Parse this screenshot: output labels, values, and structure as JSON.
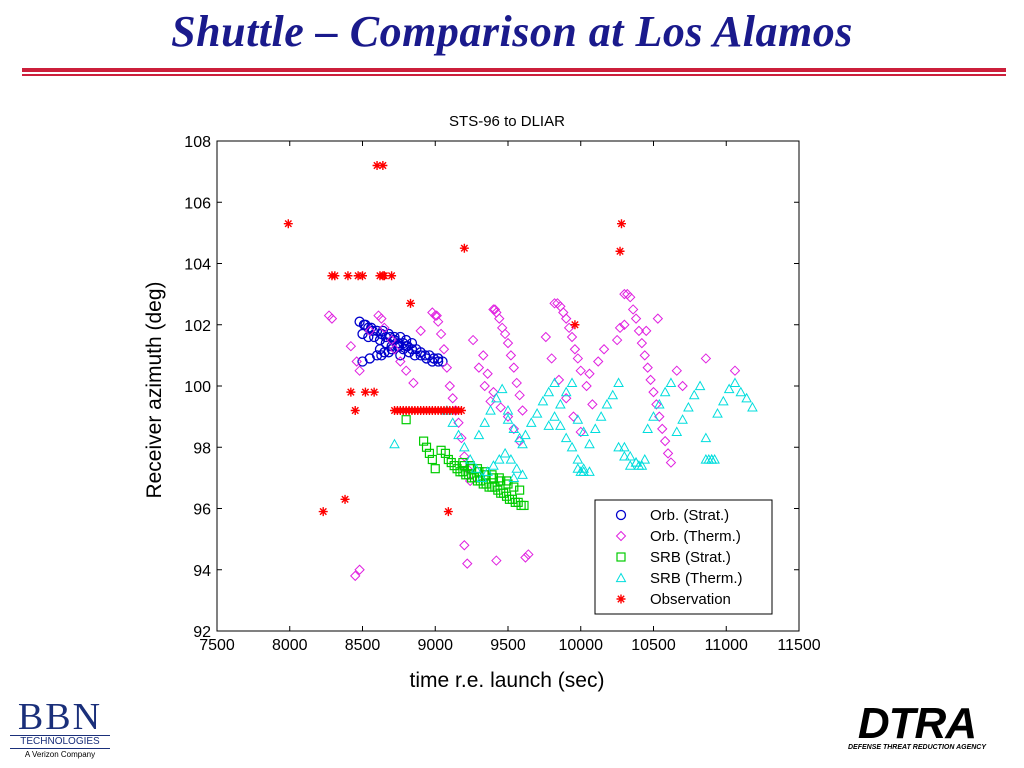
{
  "slide": {
    "title": "Shuttle – Comparison at Los Alamos"
  },
  "logos": {
    "bbn_letters": "BBN",
    "bbn_tech": "TECHNOLOGIES",
    "bbn_tagline": "A Verizon Company",
    "dtra_letters": "DTRA",
    "dtra_tagline": "DEFENSE THREAT REDUCTION AGENCY"
  },
  "chart_data": {
    "type": "scatter",
    "title": "STS-96 to DLIAR",
    "xlabel": "time r.e. launch (sec)",
    "ylabel": "Receiver azimuth (deg)",
    "xlim": [
      7500,
      11500
    ],
    "ylim": [
      92,
      108
    ],
    "xticks": [
      7500,
      8000,
      8500,
      9000,
      9500,
      10000,
      10500,
      11000,
      11500
    ],
    "yticks": [
      92,
      94,
      96,
      98,
      100,
      102,
      104,
      106,
      108
    ],
    "grid": false,
    "legend_position": "bottom-right",
    "series": [
      {
        "name": "Orb. (Strat.)",
        "color": "#0000cc",
        "marker": "circle",
        "x": [
          8480,
          8510,
          8540,
          8570,
          8600,
          8630,
          8660,
          8690,
          8720,
          8750,
          8780,
          8810,
          8840,
          8870,
          8900,
          8930,
          8960,
          8990,
          9020,
          9050,
          8500,
          8540,
          8580,
          8620,
          8660,
          8700,
          8740,
          8780,
          8820,
          8860,
          8900,
          8940,
          8980,
          9020,
          8520,
          8560,
          8600,
          8640,
          8680,
          8720,
          8760,
          8800,
          8840,
          8500,
          8550,
          8600,
          8650,
          8700,
          8750,
          8800,
          8630,
          8680,
          8760,
          8620
        ],
        "y": [
          102.1,
          102.0,
          101.9,
          101.8,
          101.8,
          101.7,
          101.6,
          101.6,
          101.5,
          101.4,
          101.4,
          101.3,
          101.2,
          101.2,
          101.1,
          101.0,
          101.0,
          100.9,
          100.9,
          100.8,
          101.7,
          101.6,
          101.6,
          101.5,
          101.4,
          101.3,
          101.3,
          101.2,
          101.1,
          101.0,
          101.0,
          100.9,
          100.8,
          100.8,
          102.0,
          101.9,
          101.8,
          101.8,
          101.7,
          101.6,
          101.6,
          101.5,
          101.4,
          100.8,
          100.9,
          101.0,
          101.1,
          101.2,
          101.3,
          101.3,
          101.0,
          101.1,
          101.0,
          101.2
        ]
      },
      {
        "name": "Orb. (Therm.)",
        "color": "#e020e0",
        "marker": "diamond",
        "x": [
          8270,
          8290,
          8420,
          8460,
          8480,
          8550,
          8610,
          8630,
          8650,
          8700,
          8720,
          8760,
          8800,
          8850,
          8900,
          8980,
          9000,
          9010,
          9020,
          9040,
          9060,
          9080,
          9100,
          9120,
          9140,
          9160,
          9180,
          9200,
          9220,
          9240,
          9260,
          9300,
          9340,
          9380,
          9400,
          9410,
          9420,
          9440,
          9460,
          9480,
          9500,
          9520,
          9540,
          9560,
          9580,
          9600,
          9330,
          9360,
          9400,
          9450,
          9500,
          9540,
          9580,
          9820,
          9840,
          9860,
          9880,
          9900,
          9920,
          9940,
          9960,
          9980,
          10000,
          10040,
          10080,
          9760,
          9800,
          9850,
          9900,
          9950,
          10000,
          10060,
          10120,
          10160,
          10300,
          10320,
          10340,
          10360,
          10380,
          10400,
          10420,
          10440,
          10460,
          10480,
          10500,
          10520,
          10540,
          10560,
          10580,
          10600,
          10620,
          10660,
          10700,
          10860,
          11060,
          10250,
          10270,
          10300,
          10450,
          10530,
          9200,
          9220,
          9420,
          9620,
          9640,
          8450,
          8480
        ],
        "y": [
          102.3,
          102.2,
          101.3,
          100.8,
          100.5,
          101.8,
          102.3,
          102.2,
          101.9,
          101.5,
          101.2,
          100.8,
          100.5,
          100.1,
          101.8,
          102.4,
          102.3,
          102.3,
          102.1,
          101.7,
          101.2,
          100.6,
          100.0,
          99.6,
          99.2,
          98.8,
          98.3,
          97.7,
          97.3,
          96.9,
          101.5,
          100.6,
          100.0,
          99.5,
          102.5,
          102.5,
          102.4,
          102.2,
          101.9,
          101.7,
          101.4,
          101.0,
          100.6,
          100.1,
          99.7,
          99.2,
          101.0,
          100.4,
          99.8,
          99.3,
          99.0,
          98.6,
          98.2,
          102.7,
          102.7,
          102.6,
          102.4,
          102.2,
          101.9,
          101.6,
          101.2,
          100.9,
          100.5,
          100.0,
          99.4,
          101.6,
          100.9,
          100.2,
          99.6,
          99.0,
          98.5,
          100.4,
          100.8,
          101.2,
          103.0,
          103.0,
          102.9,
          102.5,
          102.2,
          101.8,
          101.4,
          101.0,
          100.6,
          100.2,
          99.8,
          99.4,
          99.0,
          98.6,
          98.2,
          97.8,
          97.5,
          100.5,
          100.0,
          100.9,
          100.5,
          101.5,
          101.9,
          102.0,
          101.8,
          102.2,
          94.8,
          94.2,
          94.3,
          94.4,
          94.5,
          93.8,
          94.0
        ]
      },
      {
        "name": "SRB (Strat.)",
        "color": "#00cc00",
        "marker": "square",
        "x": [
          8800,
          8920,
          8940,
          8960,
          8980,
          9000,
          9040,
          9070,
          9090,
          9110,
          9130,
          9150,
          9170,
          9190,
          9210,
          9230,
          9250,
          9270,
          9290,
          9310,
          9330,
          9350,
          9370,
          9390,
          9410,
          9430,
          9450,
          9470,
          9490,
          9510,
          9530,
          9550,
          9570,
          9590,
          9610,
          9200,
          9250,
          9300,
          9350,
          9400,
          9450,
          9500,
          9540,
          9580,
          9190,
          9240,
          9290,
          9340,
          9390,
          9440,
          9490
        ],
        "y": [
          98.9,
          98.2,
          98.0,
          97.8,
          97.6,
          97.3,
          97.9,
          97.8,
          97.6,
          97.5,
          97.4,
          97.3,
          97.2,
          97.2,
          97.1,
          97.1,
          97.0,
          97.0,
          96.9,
          96.9,
          96.8,
          96.8,
          96.7,
          96.7,
          96.7,
          96.6,
          96.5,
          96.5,
          96.4,
          96.3,
          96.3,
          96.2,
          96.2,
          96.1,
          96.1,
          97.4,
          97.3,
          97.2,
          97.1,
          97.0,
          96.9,
          96.8,
          96.7,
          96.6,
          97.5,
          97.4,
          97.3,
          97.2,
          97.1,
          97.0,
          96.9
        ]
      },
      {
        "name": "SRB (Therm.)",
        "color": "#00dddd",
        "marker": "triangle",
        "x": [
          8720,
          9080,
          9120,
          9160,
          9200,
          9240,
          9280,
          9320,
          9360,
          9400,
          9440,
          9480,
          9520,
          9560,
          9600,
          9300,
          9340,
          9380,
          9420,
          9460,
          9500,
          9540,
          9580,
          9600,
          9620,
          9660,
          9700,
          9740,
          9780,
          9820,
          9860,
          9900,
          9940,
          9980,
          10020,
          10060,
          9780,
          9820,
          9860,
          9900,
          9940,
          9980,
          10020,
          10060,
          10100,
          10140,
          10180,
          10220,
          10260,
          10300,
          10340,
          10380,
          10420,
          10460,
          10500,
          10540,
          10580,
          10620,
          10660,
          10700,
          10740,
          10780,
          10820,
          10860,
          10900,
          10940,
          10980,
          11020,
          11060,
          11100,
          11140,
          11180,
          10260,
          10300,
          10340,
          10380,
          10400,
          10440,
          10860,
          10880,
          10900,
          10920,
          9500,
          9540,
          9980,
          10000,
          10020
        ],
        "y": [
          98.1,
          99.2,
          98.8,
          98.4,
          98.0,
          97.6,
          97.3,
          97.0,
          97.2,
          97.4,
          97.6,
          97.8,
          97.6,
          97.3,
          97.1,
          98.4,
          98.8,
          99.2,
          99.6,
          99.9,
          98.9,
          98.6,
          98.3,
          98.1,
          98.4,
          98.8,
          99.1,
          99.5,
          99.8,
          100.1,
          98.7,
          98.3,
          98.0,
          97.6,
          97.3,
          97.2,
          98.7,
          99.0,
          99.4,
          99.8,
          100.1,
          98.9,
          98.5,
          98.1,
          98.6,
          99.0,
          99.4,
          99.7,
          100.1,
          98.0,
          97.7,
          97.5,
          97.4,
          98.6,
          99.0,
          99.4,
          99.8,
          100.1,
          98.5,
          98.9,
          99.3,
          99.7,
          100.0,
          98.3,
          97.6,
          99.1,
          99.5,
          99.9,
          100.1,
          99.8,
          99.6,
          99.3,
          98.0,
          97.7,
          97.4,
          97.5,
          97.4,
          97.6,
          97.6,
          97.6,
          97.6,
          97.6,
          99.2,
          97.0,
          97.3,
          97.2,
          97.2
        ]
      },
      {
        "name": "Observation",
        "color": "#ff0000",
        "marker": "star",
        "x": [
          7990,
          8230,
          8290,
          8310,
          8380,
          8400,
          8420,
          8450,
          8470,
          8500,
          8520,
          8580,
          8620,
          8640,
          8650,
          8700,
          8720,
          8740,
          8760,
          8780,
          8800,
          8820,
          8840,
          8860,
          8880,
          8900,
          8920,
          8940,
          8960,
          8980,
          9000,
          9020,
          9040,
          9060,
          9080,
          9100,
          9120,
          9140,
          9160,
          9180,
          8600,
          8640,
          8830,
          9200,
          9090,
          10270,
          10280,
          9960
        ],
        "y": [
          105.3,
          95.9,
          103.6,
          103.6,
          96.3,
          103.6,
          99.8,
          99.2,
          103.6,
          103.6,
          99.8,
          99.8,
          103.6,
          103.6,
          103.6,
          103.6,
          99.2,
          99.2,
          99.2,
          99.2,
          99.2,
          99.2,
          99.2,
          99.2,
          99.2,
          99.2,
          99.2,
          99.2,
          99.2,
          99.2,
          99.2,
          99.2,
          99.2,
          99.2,
          99.2,
          99.2,
          99.2,
          99.2,
          99.2,
          99.2,
          107.2,
          107.2,
          102.7,
          104.5,
          95.9,
          104.4,
          105.3,
          102.0
        ]
      }
    ]
  }
}
